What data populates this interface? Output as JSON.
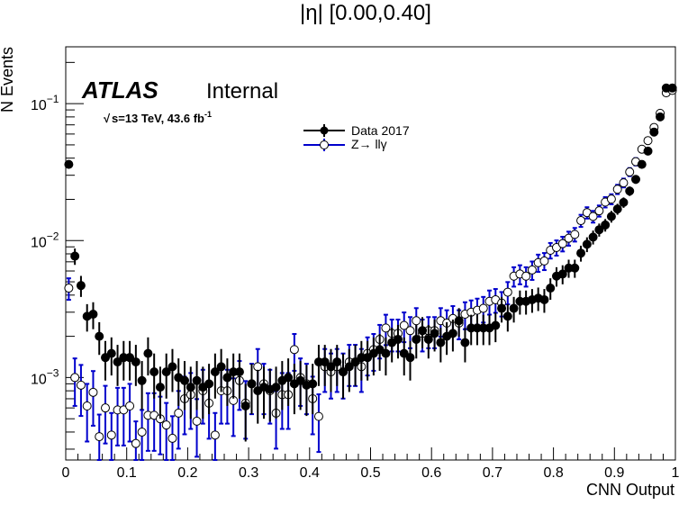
{
  "chart_data": {
    "type": "scatter",
    "title": "|η| [0.00,0.40]",
    "xlabel": "CNN Output",
    "ylabel": "N Events",
    "xlim": [
      0,
      1
    ],
    "ylim": [
      0.00025,
      0.26
    ],
    "yscale": "log",
    "x_ticks": [
      "0",
      "0.1",
      "0.2",
      "0.3",
      "0.4",
      "0.5",
      "0.6",
      "0.7",
      "0.8",
      "0.9",
      "1"
    ],
    "y_ticks": [
      {
        "value": 0.001,
        "base": "10",
        "exp": "−3"
      },
      {
        "value": 0.01,
        "base": "10",
        "exp": "−2"
      },
      {
        "value": 0.1,
        "base": "10",
        "exp": "−1"
      }
    ],
    "legend_position": "top-center",
    "atlas_label": "ATLAS",
    "internal_label": "Internal",
    "energy_label_pre": "s=13 TeV, 43.6 fb",
    "energy_label_sup": "-1",
    "series": [
      {
        "name": "Data 2017",
        "marker": "filled-circle",
        "color": "#000000",
        "x": [
          0.005,
          0.015,
          0.025,
          0.035,
          0.045,
          0.055,
          0.065,
          0.075,
          0.085,
          0.095,
          0.105,
          0.115,
          0.125,
          0.135,
          0.145,
          0.155,
          0.165,
          0.175,
          0.185,
          0.195,
          0.205,
          0.215,
          0.225,
          0.235,
          0.245,
          0.255,
          0.265,
          0.275,
          0.285,
          0.295,
          0.305,
          0.315,
          0.325,
          0.335,
          0.345,
          0.355,
          0.365,
          0.375,
          0.385,
          0.395,
          0.405,
          0.415,
          0.425,
          0.435,
          0.445,
          0.455,
          0.465,
          0.475,
          0.485,
          0.495,
          0.505,
          0.515,
          0.525,
          0.535,
          0.545,
          0.555,
          0.565,
          0.575,
          0.585,
          0.595,
          0.605,
          0.615,
          0.625,
          0.635,
          0.645,
          0.655,
          0.665,
          0.675,
          0.685,
          0.695,
          0.705,
          0.715,
          0.725,
          0.735,
          0.745,
          0.755,
          0.765,
          0.775,
          0.785,
          0.795,
          0.805,
          0.815,
          0.825,
          0.835,
          0.845,
          0.855,
          0.865,
          0.875,
          0.885,
          0.895,
          0.905,
          0.915,
          0.925,
          0.935,
          0.945,
          0.955,
          0.965,
          0.975,
          0.985,
          0.995
        ],
        "y": [
          0.036,
          0.0077,
          0.0047,
          0.0028,
          0.0029,
          0.002,
          0.0014,
          0.0015,
          0.0013,
          0.0014,
          0.0014,
          0.0013,
          0.00095,
          0.0015,
          0.0011,
          0.00085,
          0.0011,
          0.0012,
          0.001,
          0.00095,
          0.00085,
          0.00095,
          0.00085,
          0.0009,
          0.0011,
          0.0012,
          0.001,
          0.0011,
          0.0011,
          0.00062,
          0.0009,
          0.0008,
          0.00085,
          0.00082,
          0.00085,
          0.00095,
          0.001,
          0.0009,
          0.00095,
          0.00088,
          0.0009,
          0.0013,
          0.0013,
          0.0012,
          0.0013,
          0.0011,
          0.0012,
          0.0013,
          0.0014,
          0.0014,
          0.0015,
          0.0016,
          0.0015,
          0.0018,
          0.0019,
          0.0015,
          0.0014,
          0.0019,
          0.0022,
          0.0019,
          0.0021,
          0.0018,
          0.002,
          0.0021,
          0.0026,
          0.0018,
          0.0023,
          0.0023,
          0.0023,
          0.0023,
          0.0024,
          0.0032,
          0.0028,
          0.0032,
          0.0036,
          0.0036,
          0.0037,
          0.0038,
          0.0037,
          0.0045,
          0.0055,
          0.0057,
          0.0063,
          0.0063,
          0.0081,
          0.0094,
          0.0106,
          0.012,
          0.013,
          0.015,
          0.017,
          0.019,
          0.023,
          0.028,
          0.036,
          0.045,
          0.062,
          0.08,
          0.13,
          0.13
        ]
      },
      {
        "name": "Z→ llγ",
        "marker": "open-circle",
        "color": "#0000cc",
        "x": [
          0.005,
          0.015,
          0.025,
          0.035,
          0.045,
          0.055,
          0.065,
          0.075,
          0.085,
          0.095,
          0.105,
          0.115,
          0.125,
          0.135,
          0.145,
          0.155,
          0.165,
          0.175,
          0.185,
          0.195,
          0.205,
          0.215,
          0.225,
          0.235,
          0.245,
          0.255,
          0.265,
          0.275,
          0.285,
          0.295,
          0.305,
          0.315,
          0.325,
          0.335,
          0.345,
          0.355,
          0.365,
          0.375,
          0.385,
          0.395,
          0.405,
          0.415,
          0.425,
          0.435,
          0.445,
          0.455,
          0.465,
          0.475,
          0.485,
          0.495,
          0.505,
          0.515,
          0.525,
          0.535,
          0.545,
          0.555,
          0.565,
          0.575,
          0.585,
          0.595,
          0.605,
          0.615,
          0.625,
          0.635,
          0.645,
          0.655,
          0.665,
          0.675,
          0.685,
          0.695,
          0.705,
          0.715,
          0.725,
          0.735,
          0.745,
          0.755,
          0.765,
          0.775,
          0.785,
          0.795,
          0.805,
          0.815,
          0.825,
          0.835,
          0.845,
          0.855,
          0.865,
          0.875,
          0.885,
          0.895,
          0.905,
          0.915,
          0.925,
          0.935,
          0.945,
          0.955,
          0.965,
          0.975,
          0.985,
          0.995
        ],
        "y": [
          0.0045,
          0.001,
          0.00088,
          0.00062,
          0.00078,
          0.00037,
          0.0006,
          0.00038,
          0.00058,
          0.00058,
          0.00062,
          0.00033,
          0.0004,
          0.00053,
          0.00053,
          0.0005,
          0.00045,
          0.00036,
          0.00055,
          0.0007,
          0.00075,
          0.00048,
          0.0008,
          0.00065,
          0.00038,
          0.0008,
          0.0008,
          0.00068,
          0.00095,
          0.00065,
          0.0009,
          0.0012,
          0.0009,
          0.0008,
          0.00055,
          0.00075,
          0.00075,
          0.0016,
          0.001,
          0.0009,
          0.0007,
          0.00052,
          0.0012,
          0.0011,
          0.0012,
          0.0011,
          0.0013,
          0.0013,
          0.0012,
          0.0015,
          0.0016,
          0.0019,
          0.0023,
          0.0021,
          0.0021,
          0.0024,
          0.0022,
          0.0026,
          0.0021,
          0.0022,
          0.0022,
          0.0026,
          0.0025,
          0.0027,
          0.0025,
          0.0029,
          0.003,
          0.0031,
          0.0032,
          0.0036,
          0.0037,
          0.0035,
          0.0042,
          0.0055,
          0.0057,
          0.0055,
          0.0061,
          0.0069,
          0.0071,
          0.0085,
          0.0089,
          0.0095,
          0.0104,
          0.0111,
          0.014,
          0.016,
          0.015,
          0.0165,
          0.0191,
          0.0201,
          0.0237,
          0.0264,
          0.0317,
          0.0377,
          0.0465,
          0.0537,
          0.067,
          0.085,
          0.12,
          0.125
        ]
      }
    ]
  }
}
